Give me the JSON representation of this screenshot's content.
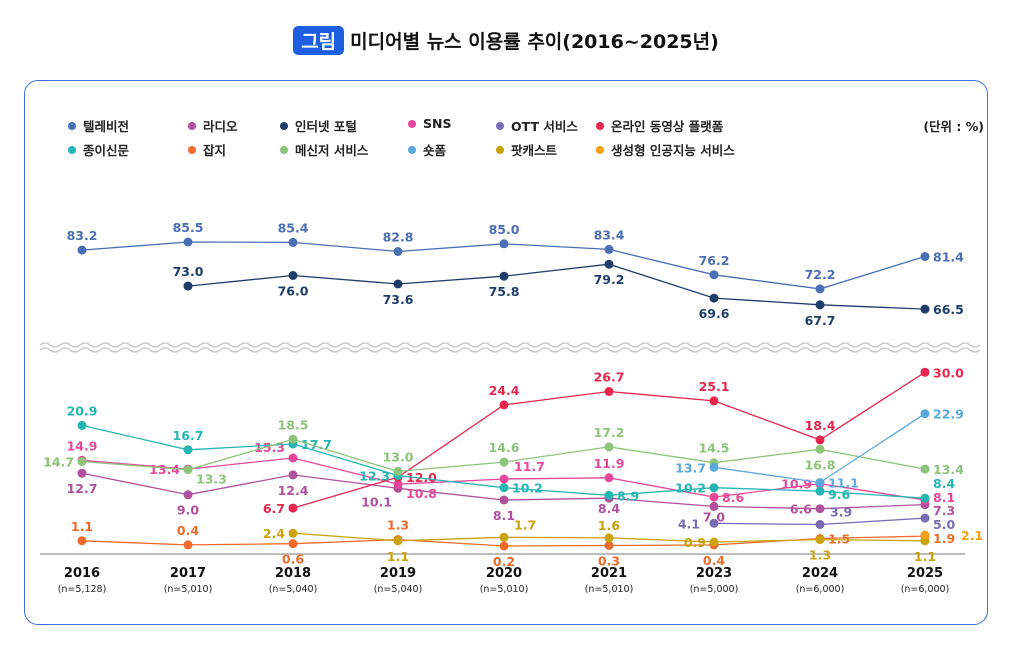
{
  "chart_data": {
    "type": "line",
    "title_tag": "그림",
    "title": "미디어별 뉴스 이용률 추이(2016~2025년)",
    "unit": "(단위 : %)",
    "categories": [
      "2016",
      "2017",
      "2018",
      "2019",
      "2020",
      "2021",
      "2023",
      "2024",
      "2025"
    ],
    "sample_sizes": [
      "(n=5,128)",
      "(n=5,010)",
      "(n=5,040)",
      "(n=5,040)",
      "(n=5,010)",
      "(n=5,010)",
      "(n=5,000)",
      "(n=6,000)",
      "(n=6,000)"
    ],
    "axis_break": true,
    "grid": false,
    "legend_position": "top",
    "series": [
      {
        "name": "텔레비전",
        "color": "#4a6fb5",
        "values": [
          83.2,
          85.5,
          85.4,
          82.8,
          85.0,
          83.4,
          76.2,
          72.2,
          81.4
        ]
      },
      {
        "name": "라디오",
        "color": "#b0509e",
        "values": [
          12.7,
          9.0,
          12.4,
          10.1,
          8.1,
          8.4,
          7.0,
          6.6,
          7.3
        ]
      },
      {
        "name": "인터넷 포털",
        "color": "#1f3d6b",
        "values": [
          null,
          73.0,
          76.0,
          73.6,
          75.8,
          79.2,
          69.6,
          67.7,
          66.5
        ]
      },
      {
        "name": "SNS",
        "color": "#e8479a",
        "values": [
          14.9,
          13.4,
          15.3,
          10.8,
          11.7,
          11.9,
          8.6,
          10.9,
          8.1
        ]
      },
      {
        "name": "OTT 서비스",
        "color": "#7a6bb5",
        "values": [
          null,
          null,
          null,
          null,
          null,
          null,
          4.1,
          3.9,
          5.0
        ]
      },
      {
        "name": "온라인 동영상 플랫폼",
        "color": "#e8264d",
        "values": [
          null,
          null,
          6.7,
          12.0,
          24.4,
          26.7,
          25.1,
          18.4,
          30.0
        ]
      },
      {
        "name": "종이신문",
        "color": "#26b5b5",
        "values": [
          20.9,
          16.7,
          17.7,
          12.3,
          10.2,
          8.9,
          10.2,
          9.6,
          8.4
        ]
      },
      {
        "name": "잡지",
        "color": "#f06a2a",
        "values": [
          1.1,
          0.4,
          0.6,
          1.3,
          0.2,
          0.3,
          0.4,
          1.5,
          1.9
        ]
      },
      {
        "name": "메신저 서비스",
        "color": "#8cc47a",
        "values": [
          14.7,
          13.3,
          18.5,
          13.0,
          14.6,
          17.2,
          14.5,
          16.8,
          13.4
        ]
      },
      {
        "name": "숏폼",
        "color": "#5ba8dc",
        "values": [
          null,
          null,
          null,
          null,
          null,
          null,
          13.7,
          11.1,
          22.9
        ]
      },
      {
        "name": "팟캐스트",
        "color": "#c9a20c",
        "values": [
          null,
          null,
          2.4,
          1.1,
          1.7,
          1.6,
          0.9,
          1.3,
          1.1
        ]
      },
      {
        "name": "생성형 인공지능 서비스",
        "color": "#f5a01a",
        "values": [
          null,
          null,
          null,
          null,
          null,
          null,
          null,
          null,
          2.1
        ]
      }
    ]
  }
}
